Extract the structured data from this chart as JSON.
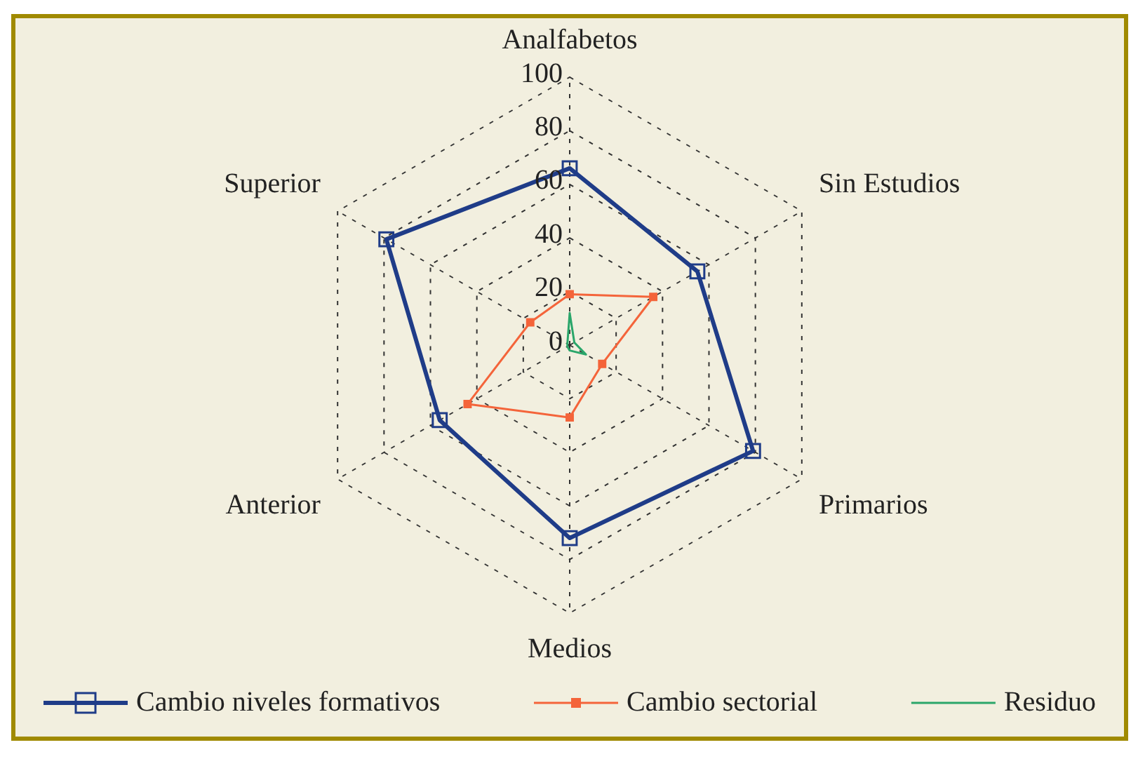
{
  "chart_data": {
    "type": "radar",
    "categories": [
      "Analfabetos",
      "Sin Estudios",
      "Primarios",
      "Medios",
      "Anterior",
      "Superior"
    ],
    "ylim": [
      0,
      100
    ],
    "yticks": [
      0,
      20,
      40,
      60,
      80,
      100
    ],
    "grid": true,
    "legend": "bottom",
    "series": [
      {
        "name": "Cambio niveles formativos",
        "color": "#1f3c88",
        "marker": "square",
        "values": [
          66,
          55,
          79,
          72,
          56,
          79
        ]
      },
      {
        "name": "Cambio sectorial",
        "color": "#f4643a",
        "marker": "square",
        "values": [
          19,
          36,
          14,
          27,
          44,
          17
        ]
      },
      {
        "name": "Residuo",
        "color": "#2aa66a",
        "marker": "none",
        "values": [
          12,
          2,
          7,
          2,
          1,
          1
        ]
      }
    ]
  }
}
